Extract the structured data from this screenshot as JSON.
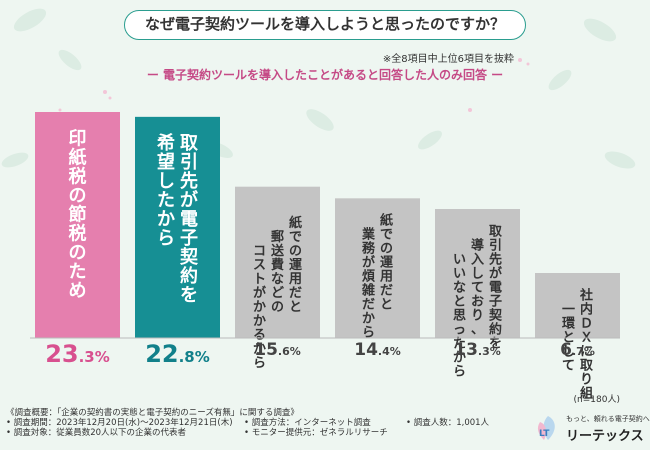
{
  "title": "なぜ電子契約ツールを導入しようと思ったのですか？",
  "note_top": "※全8項目中上位6項目を抜粋",
  "subtitle": "ー 電子契約ツールを導入したことがあると回答した人のみ回答 ー",
  "sample_note": "(n=180人)",
  "colors": {
    "pink": "#e57fae",
    "teal": "#168f94",
    "gray": "#c4c4c4",
    "pink_text": "#d8508f",
    "teal_text": "#11808a"
  },
  "chart_data": {
    "type": "bar",
    "categories": [
      "印紙税の節税のため",
      "取引先が電子契約を希望したから",
      "紙での運用だと郵送費などのコストがかかるから",
      "紙での運用だと業務が煩雑だから",
      "取引先が電子契約を導入しており、いいなと思ったから",
      "社内ＤＸに取り組む一環として"
    ],
    "label_lines": [
      [
        "印紙税の節税のため"
      ],
      [
        "取引先が電子契約を",
        "希望したから"
      ],
      [
        "紙での運用だと",
        "郵送費などの",
        "コストがかかるから"
      ],
      [
        "紙での運用だと",
        "業務が煩雑だから"
      ],
      [
        "取引先が電子契約を",
        "導入しており、",
        "いいなと思ったから"
      ],
      [
        "社内ＤＸに取り組む",
        "一環として"
      ]
    ],
    "values": [
      23.3,
      22.8,
      15.6,
      14.4,
      13.3,
      6.7
    ],
    "value_int": [
      "23",
      "22",
      "15",
      "14",
      "13",
      "6"
    ],
    "value_dec": [
      ".3%",
      ".8%",
      ".6%",
      ".4%",
      ".3%",
      ".7%"
    ],
    "colors": [
      "pink",
      "teal",
      "gray",
      "gray",
      "gray",
      "gray"
    ],
    "unit": "%",
    "ylim": [
      0,
      23.3
    ]
  },
  "survey": {
    "overview": "《調査概要：「企業の契約書の実態と電子契約のニーズ有無」に関する調査》",
    "period": "• 調査期間：2023年12月20日(水)〜2023年12月21日(木)",
    "method": "• 調査方法：インターネット調査",
    "count": "• 調査人数：1,001人",
    "target": "• 調査対象：従業員数20人以下の企業の代表者",
    "provider": "• モニター提供元：ゼネラルリサーチ"
  },
  "logo": {
    "tagline": "もっと、頼れる電子契約へ",
    "name": "リーテックス",
    "mark": "LT"
  }
}
